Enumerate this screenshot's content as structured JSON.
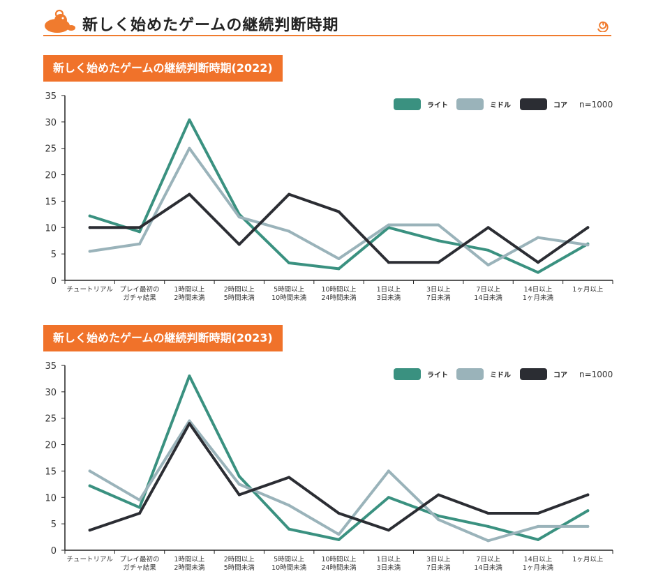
{
  "page": {
    "title": "新しく始めたゲームの継続判断時期"
  },
  "colors": {
    "accent": "#f0722a",
    "light": "#3a9180",
    "middle": "#9ab3ba",
    "core": "#2b2d33",
    "axis": "#222222"
  },
  "chart_data": [
    {
      "type": "line",
      "title": "新しく始めたゲームの継続判断時期(2022)",
      "note": "n=1000",
      "ylim": [
        0,
        35
      ],
      "yticks": [
        0,
        5,
        10,
        15,
        20,
        25,
        30,
        35
      ],
      "categories": [
        [
          "チュートリアル"
        ],
        [
          "プレイ最初の",
          "ガチャ結果"
        ],
        [
          "1時間以上",
          "2時間未満"
        ],
        [
          "2時間以上",
          "5時間未満"
        ],
        [
          "5時間以上",
          "10時間未満"
        ],
        [
          "10時間以上",
          "24時間未満"
        ],
        [
          "1日以上",
          "3日未満"
        ],
        [
          "3日以上",
          "7日未満"
        ],
        [
          "7日以上",
          "14日未満"
        ],
        [
          "14日以上",
          "1ヶ月未満"
        ],
        [
          "1ヶ月以上"
        ]
      ],
      "series": [
        {
          "name": "ライト",
          "color_key": "light",
          "values": [
            12.2,
            9.2,
            30.4,
            12.5,
            3.3,
            2.2,
            10.0,
            7.5,
            5.7,
            1.5,
            6.9
          ]
        },
        {
          "name": "ミドル",
          "color_key": "middle",
          "values": [
            5.5,
            6.9,
            25.0,
            12.0,
            9.3,
            4.1,
            10.5,
            10.5,
            2.9,
            8.1,
            6.7
          ]
        },
        {
          "name": "コア",
          "color_key": "core",
          "values": [
            10.0,
            10.0,
            16.3,
            6.8,
            16.3,
            13.0,
            3.4,
            3.4,
            10.0,
            3.4,
            10.0
          ]
        }
      ]
    },
    {
      "type": "line",
      "title": "新しく始めたゲームの継続判断時期(2023)",
      "note": "n=1000",
      "ylim": [
        0,
        35
      ],
      "yticks": [
        0,
        5,
        10,
        15,
        20,
        25,
        30,
        35
      ],
      "categories": [
        [
          "チュートリアル"
        ],
        [
          "プレイ最初の",
          "ガチャ結果"
        ],
        [
          "1時間以上",
          "2時間未満"
        ],
        [
          "2時間以上",
          "5時間未満"
        ],
        [
          "5時間以上",
          "10時間未満"
        ],
        [
          "10時間以上",
          "24時間未満"
        ],
        [
          "1日以上",
          "3日未満"
        ],
        [
          "3日以上",
          "7日未満"
        ],
        [
          "7日以上",
          "14日未満"
        ],
        [
          "14日以上",
          "1ヶ月未満"
        ],
        [
          "1ヶ月以上"
        ]
      ],
      "series": [
        {
          "name": "ライト",
          "color_key": "light",
          "values": [
            12.2,
            8.1,
            33.0,
            14.0,
            4.0,
            2.0,
            10.0,
            6.5,
            4.5,
            2.0,
            7.5
          ]
        },
        {
          "name": "ミドル",
          "color_key": "middle",
          "values": [
            15.0,
            9.5,
            24.5,
            12.5,
            8.5,
            3.0,
            15.0,
            5.8,
            1.8,
            4.5,
            4.5
          ]
        },
        {
          "name": "コア",
          "color_key": "core",
          "values": [
            3.8,
            7.0,
            24.0,
            10.5,
            13.8,
            7.0,
            3.8,
            10.5,
            7.0,
            7.0,
            10.5
          ]
        }
      ]
    }
  ]
}
